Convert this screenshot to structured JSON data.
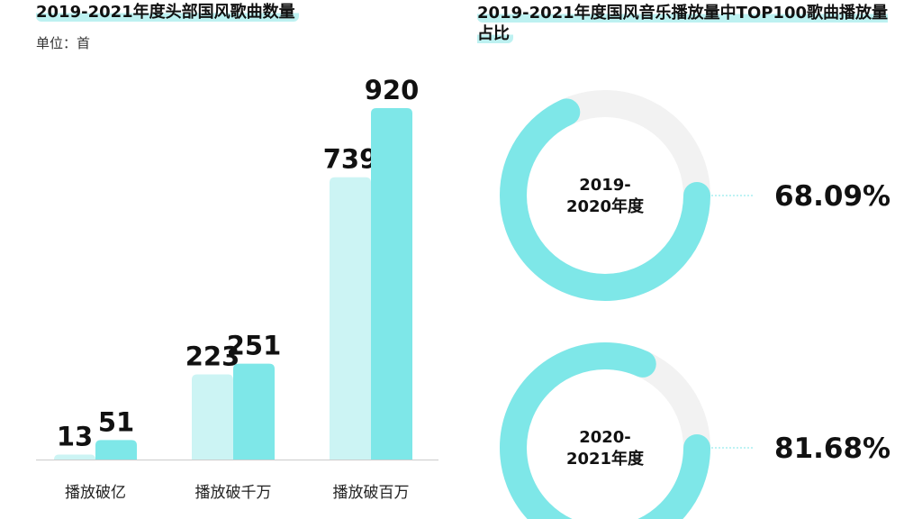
{
  "chart_data": [
    {
      "type": "bar",
      "title": "2019-2021年度头部国风歌曲数量",
      "subtitle": "单位：首",
      "categories": [
        "播放破亿",
        "播放破千万",
        "播放破百万"
      ],
      "series": [
        {
          "color": "#ccf4f4",
          "values": [
            13,
            223,
            739
          ]
        },
        {
          "color": "#7ee7e8",
          "values": [
            51,
            251,
            920
          ]
        }
      ]
    },
    {
      "type": "donut",
      "title": "2019-2021年度国风音乐播放量中TOP100歌曲播放量占比",
      "categories": [
        "2019-2020年度",
        "2020-2021年度"
      ],
      "values": [
        68.09,
        81.68
      ],
      "value_labels": [
        "68.09%",
        "81.68%"
      ],
      "color": "#7ee7e8",
      "track_color": "#f2f2f2"
    }
  ]
}
